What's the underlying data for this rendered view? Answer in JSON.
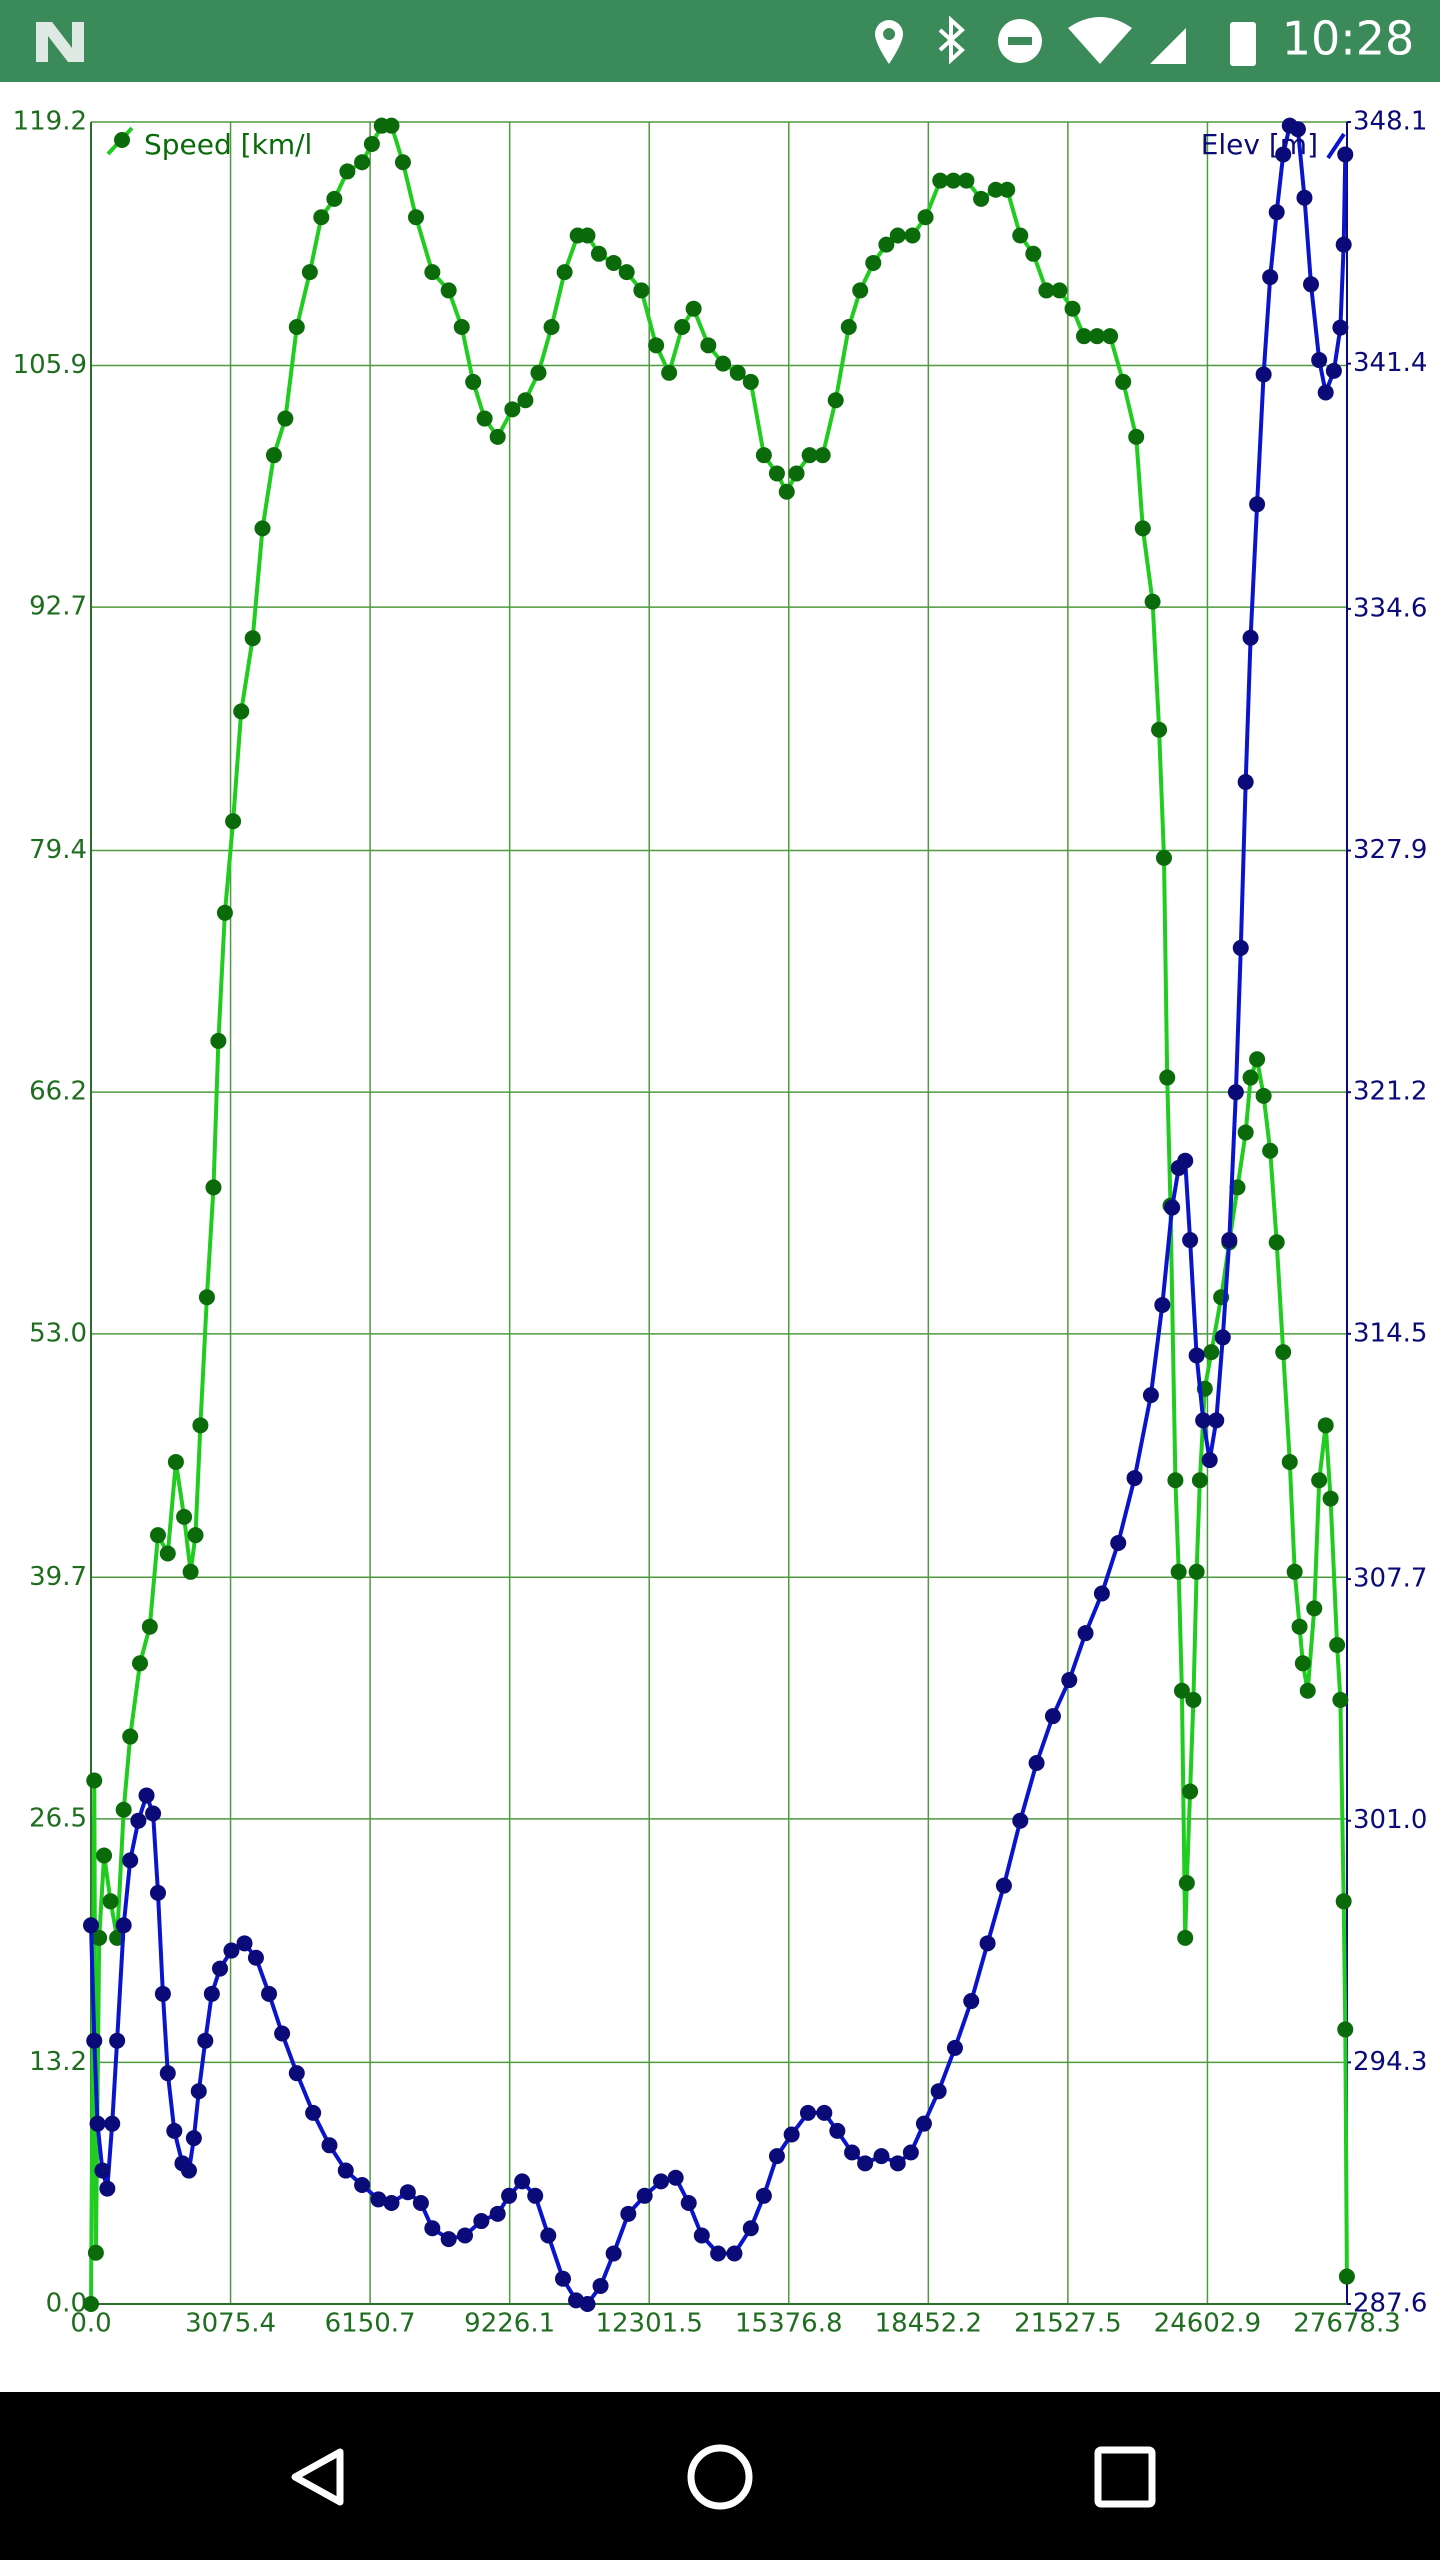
{
  "status_bar": {
    "time": "10:28"
  },
  "chart_data": {
    "type": "line",
    "xlim": [
      0,
      27678.3
    ],
    "xticks": [
      {
        "value": 0,
        "label": "0.0"
      },
      3075.4,
      6150.7,
      9226.1,
      12301.5,
      15376.8,
      18452.2,
      21527.5,
      24602.9,
      27678.3
    ],
    "ylim": [
      0,
      119.2
    ],
    "yticks": [
      {
        "value": 0,
        "label": "0.0"
      },
      13.2,
      26.5,
      39.7,
      {
        "value": 53,
        "label": "53.0"
      },
      66.2,
      79.4,
      92.7,
      105.9,
      119.2
    ],
    "y2lim": [
      287.6,
      348.1
    ],
    "y2ticks": [
      287.6,
      294.3,
      {
        "value": 301,
        "label": "301.0"
      },
      307.7,
      314.5,
      321.2,
      327.9,
      334.6,
      341.4,
      348.1
    ],
    "grid": true,
    "series": [
      {
        "name": "Speed [km/l",
        "color": "#1fcc1f",
        "marker_color": "#0b6b0b",
        "x": [
          0,
          72,
          108,
          180,
          288,
          432,
          576,
          720,
          864,
          1080,
          1296,
          1476,
          1692,
          1871,
          2051,
          2195,
          2303,
          2411,
          2555,
          2699,
          2807,
          2951,
          3131,
          3311,
          3563,
          3779,
          4031,
          4283,
          4535,
          4823,
          5075,
          5363,
          5650,
          5974,
          6190,
          6406,
          6622,
          6874,
          7162,
          7522,
          7882,
          8170,
          8422,
          8674,
          8962,
          9285,
          9573,
          9861,
          10149,
          10437,
          10725,
          10941,
          11193,
          11517,
          11805,
          12129,
          12453,
          12740,
          13028,
          13280,
          13604,
          13928,
          14252,
          14540,
          14828,
          15116,
          15332,
          15548,
          15836,
          16124,
          16411,
          16699,
          16951,
          17239,
          17527,
          17779,
          18103,
          18391,
          18715,
          19003,
          19291,
          19615,
          19938,
          20190,
          20478,
          20766,
          21054,
          21342,
          21630,
          21882,
          22170,
          22458,
          22746,
          23034,
          23178,
          23394,
          23537,
          23645,
          23717,
          23789,
          23897,
          23969,
          24041,
          24113,
          24149,
          24221,
          24293,
          24365,
          24437,
          24545,
          24689,
          24905,
          25085,
          25265,
          25445,
          25553,
          25697,
          25841,
          25985,
          26129,
          26273,
          26417,
          26525,
          26633,
          26705,
          26813,
          26957,
          27065,
          27209,
          27317,
          27461,
          27533,
          27605,
          27640,
          27676
        ],
        "values": [
          0,
          28.6,
          2.8,
          20,
          24.5,
          22,
          20,
          27,
          31,
          35,
          37,
          42,
          41,
          46,
          43,
          40,
          42,
          48,
          55,
          61,
          69,
          76,
          81,
          87,
          91,
          97,
          101,
          103,
          108,
          111,
          114,
          115,
          116.5,
          117,
          118,
          119,
          119,
          117,
          114,
          111,
          110,
          108,
          105,
          103,
          102,
          103.5,
          104,
          105.5,
          108,
          111,
          113,
          113,
          112,
          111.5,
          111,
          110,
          107,
          105.5,
          108,
          109,
          107,
          106,
          105.5,
          105,
          101,
          100,
          99,
          100,
          101,
          101,
          104,
          108,
          110,
          111.5,
          112.5,
          113,
          113,
          114,
          116,
          116,
          116,
          115,
          115.5,
          115.5,
          113,
          112,
          110,
          110,
          109,
          107.5,
          107.5,
          107.5,
          105,
          102,
          97,
          93,
          86,
          79,
          67,
          60,
          45,
          40,
          33.5,
          20,
          23,
          28,
          33,
          40,
          45,
          50,
          52,
          55,
          58,
          61,
          64,
          67,
          68,
          66,
          63,
          58,
          52,
          46,
          40,
          37,
          35,
          33.5,
          38,
          45,
          48,
          44,
          36,
          33,
          22,
          15,
          1.5
        ]
      },
      {
        "name": "Elev [m]",
        "color": "#0a14cc",
        "marker_color": "#0a0a78",
        "axis": "y2",
        "x": [
          0,
          72,
          144,
          252,
          360,
          468,
          576,
          720,
          864,
          1044,
          1224,
          1368,
          1476,
          1584,
          1692,
          1836,
          2015,
          2159,
          2267,
          2375,
          2519,
          2663,
          2843,
          3095,
          3383,
          3635,
          3923,
          4211,
          4535,
          4895,
          5255,
          5614,
          5974,
          6334,
          6622,
          6982,
          7270,
          7522,
          7882,
          8242,
          8602,
          8962,
          9213,
          9501,
          9789,
          10077,
          10401,
          10689,
          10941,
          11229,
          11517,
          11841,
          12201,
          12561,
          12884,
          13172,
          13460,
          13820,
          14180,
          14540,
          14828,
          15116,
          15440,
          15800,
          16160,
          16447,
          16771,
          17059,
          17419,
          17779,
          18067,
          18355,
          18679,
          19039,
          19398,
          19758,
          20118,
          20478,
          20838,
          21198,
          21558,
          21917,
          22277,
          22637,
          22997,
          23357,
          23609,
          23825,
          23969,
          24113,
          24221,
          24365,
          24509,
          24653,
          24797,
          24941,
          25085,
          25229,
          25337,
          25445,
          25553,
          25697,
          25841,
          25985,
          26129,
          26273,
          26417,
          26597,
          26741,
          26885,
          27065,
          27209,
          27389,
          27533,
          27605,
          27640
        ],
        "values": [
          298.1,
          294.9,
          292.6,
          291.3,
          290.8,
          292.6,
          294.9,
          298.1,
          299.9,
          301,
          301.7,
          301.2,
          299,
          296.2,
          294,
          292.4,
          291.5,
          291.3,
          292.2,
          293.5,
          294.9,
          296.2,
          296.9,
          297.4,
          297.6,
          297.2,
          296.2,
          295.1,
          294,
          292.9,
          292,
          291.3,
          290.9,
          290.5,
          290.4,
          290.7,
          290.4,
          289.7,
          289.4,
          289.5,
          289.9,
          290.1,
          290.6,
          291,
          290.6,
          289.5,
          288.3,
          287.7,
          287.6,
          288.1,
          289,
          290.1,
          290.6,
          291,
          291.1,
          290.4,
          289.5,
          289,
          289,
          289.7,
          290.6,
          291.7,
          292.3,
          292.9,
          292.9,
          292.4,
          291.8,
          291.5,
          291.7,
          291.5,
          291.8,
          292.6,
          293.5,
          294.7,
          296,
          297.6,
          299.2,
          301,
          302.6,
          303.9,
          304.9,
          306.2,
          307.3,
          308.7,
          310.5,
          312.8,
          315.3,
          318,
          319.1,
          319.3,
          317.1,
          313.9,
          312.1,
          311,
          312.1,
          314.4,
          317.1,
          321.2,
          325.2,
          329.8,
          333.8,
          337.5,
          341.1,
          343.8,
          345.6,
          347.2,
          348,
          347.9,
          346,
          343.6,
          341.5,
          340.6,
          341.2,
          342.4,
          344.7,
          347.2
        ]
      }
    ]
  }
}
